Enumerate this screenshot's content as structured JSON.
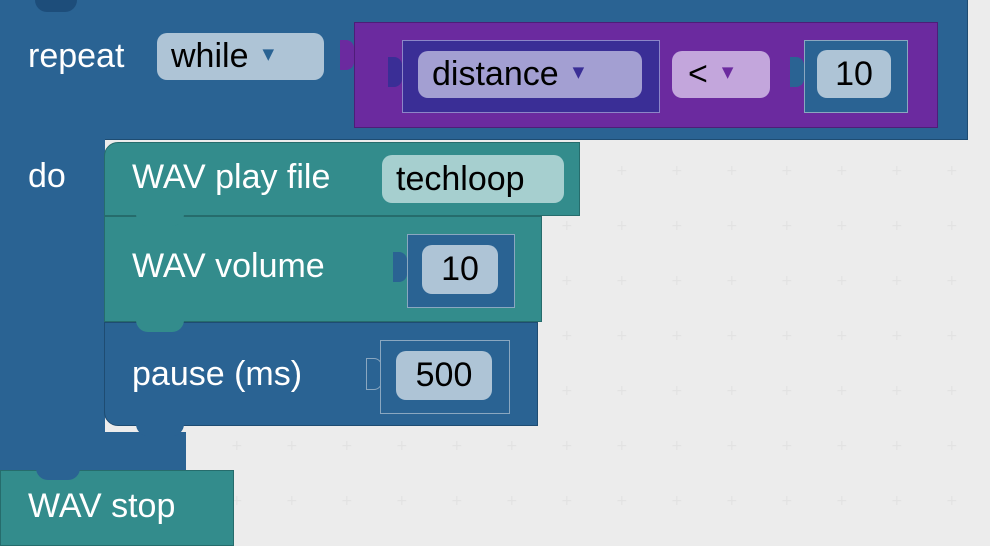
{
  "workspace": {
    "repeat_block": {
      "keyword": "repeat",
      "mode": "while",
      "do_label": "do",
      "color": "#2a6393"
    },
    "condition": {
      "variable": "distance",
      "operator": "<",
      "value": "10",
      "compare_color": "#6b2a9f",
      "variable_color": "#3a2e96"
    },
    "statements": [
      {
        "label": "WAV play file",
        "value": "techloop",
        "color": "#338c8c"
      },
      {
        "label": "WAV volume",
        "value": "10",
        "color": "#338c8c"
      },
      {
        "label": "pause (ms)",
        "value": "500",
        "color": "#2a6393"
      }
    ],
    "after_block": {
      "label": "WAV stop",
      "color": "#338c8c"
    }
  }
}
